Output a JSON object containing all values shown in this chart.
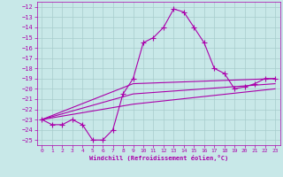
{
  "xlabel": "Windchill (Refroidissement éolien,°C)",
  "bg_color": "#c8e8e8",
  "grid_color": "#a8cccc",
  "line_color": "#aa00aa",
  "x_ticks": [
    0,
    1,
    2,
    3,
    4,
    5,
    6,
    7,
    8,
    9,
    10,
    11,
    12,
    13,
    14,
    15,
    16,
    17,
    18,
    19,
    20,
    21,
    22,
    23
  ],
  "y_ticks": [
    -12,
    -13,
    -14,
    -15,
    -16,
    -17,
    -18,
    -19,
    -20,
    -21,
    -22,
    -23,
    -24,
    -25
  ],
  "ylim": [
    -25.5,
    -11.5
  ],
  "xlim": [
    -0.5,
    23.5
  ],
  "series": [
    {
      "x": [
        0,
        1,
        2,
        3,
        4,
        5,
        6,
        7,
        8,
        9,
        10,
        11,
        12,
        13,
        14,
        15,
        16,
        17,
        18,
        19,
        20,
        21,
        22,
        23
      ],
      "y": [
        -23.0,
        -23.5,
        -23.5,
        -23.0,
        -23.5,
        -25.0,
        -25.0,
        -24.0,
        -20.5,
        -19.0,
        -15.5,
        -15.0,
        -14.0,
        -12.2,
        -12.5,
        -14.0,
        -15.5,
        -18.0,
        -18.5,
        -20.0,
        -19.8,
        -19.5,
        -19.0,
        -19.0
      ],
      "marker": "+",
      "marker_size": 4,
      "lw": 0.8
    },
    {
      "x": [
        0,
        9,
        23
      ],
      "y": [
        -23.0,
        -19.5,
        -19.0
      ],
      "marker": null,
      "marker_size": 0,
      "lw": 0.8
    },
    {
      "x": [
        0,
        9,
        23
      ],
      "y": [
        -23.0,
        -20.5,
        -19.5
      ],
      "marker": null,
      "marker_size": 0,
      "lw": 0.8
    },
    {
      "x": [
        0,
        9,
        23
      ],
      "y": [
        -23.0,
        -21.5,
        -20.0
      ],
      "marker": null,
      "marker_size": 0,
      "lw": 0.8
    }
  ]
}
